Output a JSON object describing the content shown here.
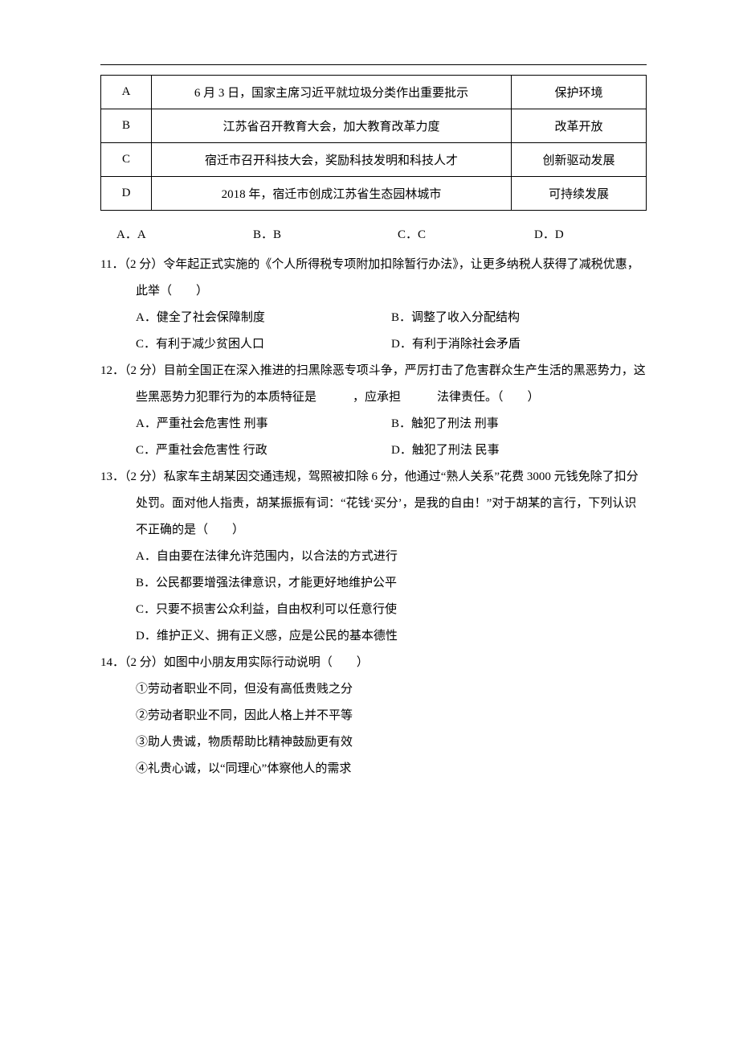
{
  "table": {
    "rows": [
      {
        "key": "A",
        "news": "6 月 3 日，国家主席习近平就垃圾分类作出重要批示",
        "strategy": "保护环境"
      },
      {
        "key": "B",
        "news": "江苏省召开教育大会，加大教育改革力度",
        "strategy": "改革开放"
      },
      {
        "key": "C",
        "news": "宿迁市召开科技大会，奖励科技发明和科技人才",
        "strategy": "创新驱动发展"
      },
      {
        "key": "D",
        "news": "2018 年，宿迁市创成江苏省生态园林城市",
        "strategy": "可持续发展"
      }
    ],
    "answers": {
      "a": "A．A",
      "b": "B．B",
      "c": "C．C",
      "d": "D．D"
    }
  },
  "q11": {
    "stem": "11．（2 分）令年起正式实施的《个人所得税专项附加扣除暂行办法》，让更多纳税人获得了减税优惠，此举（　　）",
    "a": "A．健全了社会保障制度",
    "b": "B．调整了收入分配结构",
    "c": "C．有利于减少贫困人口",
    "d": "D．有利于消除社会矛盾"
  },
  "q12": {
    "stem": "12．（2 分）目前全国正在深入推进的扫黑除恶专项斗争，严厉打击了危害群众生产生活的黑恶势力，这些黑恶势力犯罪行为的本质特征是　　　，应承担　　　法律责任。（　　）",
    "a": "A．严重社会危害性 刑事",
    "b": "B．触犯了刑法 刑事",
    "c": "C．严重社会危害性 行政",
    "d": "D．触犯了刑法 民事"
  },
  "q13": {
    "stem": "13．（2 分）私家车主胡某因交通违规，驾照被扣除 6 分，他通过“熟人关系”花费 3000 元钱免除了扣分处罚。面对他人指责，胡某振振有词：“花钱‘买分’，是我的自由！”对于胡某的言行，下列认识不正确的是（　　）",
    "a": "A．自由要在法律允许范围内，以合法的方式进行",
    "b": "B．公民都要增强法律意识，才能更好地维护公平",
    "c": "C．只要不损害公众利益，自由权利可以任意行使",
    "d": "D．维护正义、拥有正义感，应是公民的基本德性"
  },
  "q14": {
    "stem": "14．（2 分）如图中小朋友用实际行动说明（　　）",
    "l1": "①劳动者职业不同，但没有高低贵贱之分",
    "l2": "②劳动者职业不同，因此人格上并不平等",
    "l3": "③助人贵诚，物质帮助比精神鼓励更有效",
    "l4": "④礼贵心诚，以“同理心”体察他人的需求"
  }
}
